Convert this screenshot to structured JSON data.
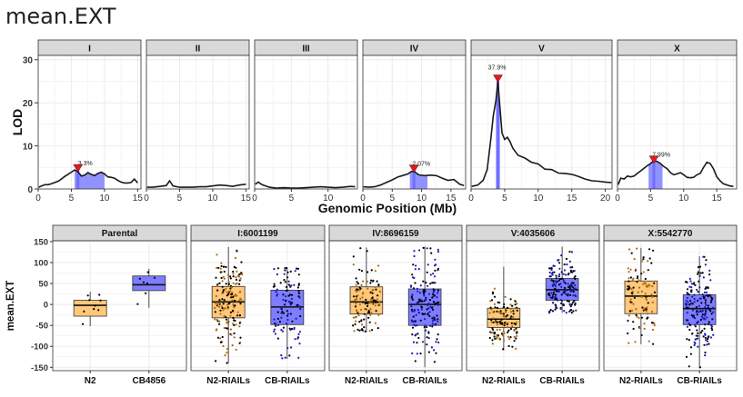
{
  "page_title": "mean.EXT",
  "chart_data": [
    {
      "type": "line",
      "ylabel": "LOD",
      "xlabel": "Genomic Position (Mb)",
      "ylim": [
        0,
        31
      ],
      "yticks": [
        0,
        10,
        20,
        30
      ],
      "grid": true,
      "legend": "none",
      "colors": {
        "line": "#1a1a1a",
        "ci": "#7f7fff",
        "ci_bar": "#6b6bff",
        "marker": "#e41a1c",
        "strip": "#d9d9d9"
      },
      "panels": [
        {
          "strip": "I",
          "xlim": [
            0,
            15.5
          ],
          "xticks": [
            0,
            5,
            10,
            15
          ],
          "profile": [
            [
              0.1,
              0.4
            ],
            [
              0.5,
              0.7
            ],
            [
              1,
              1.0
            ],
            [
              1.5,
              1.0
            ],
            [
              2,
              1.2
            ],
            [
              2.5,
              1.5
            ],
            [
              3,
              1.8
            ],
            [
              3.5,
              2.3
            ],
            [
              4,
              2.9
            ],
            [
              4.5,
              3.4
            ],
            [
              5,
              3.9
            ],
            [
              5.5,
              4.4
            ],
            [
              6,
              4.0
            ],
            [
              6.5,
              3.0
            ],
            [
              7,
              3.2
            ],
            [
              7.5,
              3.8
            ],
            [
              8,
              3.4
            ],
            [
              8.5,
              3.1
            ],
            [
              9,
              3.6
            ],
            [
              9.5,
              3.9
            ],
            [
              10,
              3.5
            ],
            [
              10.5,
              2.8
            ],
            [
              11,
              2.7
            ],
            [
              11.5,
              2.5
            ],
            [
              12,
              2.0
            ],
            [
              12.5,
              1.6
            ],
            [
              13,
              1.4
            ],
            [
              13.5,
              1.4
            ],
            [
              14,
              1.5
            ],
            [
              14.5,
              2.3
            ],
            [
              15,
              1.4
            ]
          ],
          "ci": [
            5.5,
            10
          ],
          "peak": [
            6,
            4.4
          ],
          "label": "3.3%"
        },
        {
          "strip": "II",
          "xlim": [
            0,
            15.5
          ],
          "xticks": [
            0,
            5,
            10,
            15
          ],
          "profile": [
            [
              0.1,
              0.4
            ],
            [
              1,
              0.4
            ],
            [
              2,
              0.6
            ],
            [
              3,
              0.8
            ],
            [
              3.5,
              1.9
            ],
            [
              4,
              0.7
            ],
            [
              5,
              0.4
            ],
            [
              6,
              0.4
            ],
            [
              7,
              0.4
            ],
            [
              8,
              0.5
            ],
            [
              9,
              0.5
            ],
            [
              10,
              0.7
            ],
            [
              11,
              0.9
            ],
            [
              12,
              0.8
            ],
            [
              13,
              0.6
            ],
            [
              14,
              0.9
            ],
            [
              15,
              1.1
            ]
          ]
        },
        {
          "strip": "III",
          "xlim": [
            0,
            14
          ],
          "xticks": [
            0,
            5,
            10
          ],
          "profile": [
            [
              0.1,
              1.1
            ],
            [
              0.5,
              1.6
            ],
            [
              1,
              1.0
            ],
            [
              2,
              0.4
            ],
            [
              3,
              0.2
            ],
            [
              4,
              0.3
            ],
            [
              5,
              0.2
            ],
            [
              6,
              0.2
            ],
            [
              7,
              0.3
            ],
            [
              8,
              0.4
            ],
            [
              9,
              0.5
            ],
            [
              10,
              0.4
            ],
            [
              11,
              0.3
            ],
            [
              12,
              0.4
            ],
            [
              13,
              0.6
            ],
            [
              13.7,
              0.5
            ]
          ]
        },
        {
          "strip": "IV",
          "xlim": [
            0,
            17.5
          ],
          "xticks": [
            0,
            5,
            10,
            15
          ],
          "profile": [
            [
              0.1,
              0.5
            ],
            [
              1,
              0.4
            ],
            [
              2,
              0.5
            ],
            [
              3,
              0.9
            ],
            [
              4,
              1.5
            ],
            [
              5,
              2.1
            ],
            [
              6,
              2.8
            ],
            [
              7,
              3.2
            ],
            [
              7.7,
              3.5
            ],
            [
              8.3,
              4.1
            ],
            [
              8.8,
              4.0
            ],
            [
              9.5,
              3.3
            ],
            [
              10.5,
              3.1
            ],
            [
              11.5,
              3.2
            ],
            [
              12.5,
              3.1
            ],
            [
              13.5,
              2.5
            ],
            [
              14.5,
              2.0
            ],
            [
              15.5,
              2.2
            ],
            [
              16.5,
              1.1
            ],
            [
              17.2,
              0.8
            ]
          ],
          "ci": [
            8,
            11
          ],
          "peak": [
            8.7,
            4.3
          ],
          "label": "2.07%"
        },
        {
          "strip": "V",
          "xlim": [
            0,
            21
          ],
          "xticks": [
            0,
            5,
            10,
            15,
            20
          ],
          "profile": [
            [
              0.1,
              0.6
            ],
            [
              1,
              0.9
            ],
            [
              1.8,
              2.0
            ],
            [
              2.4,
              4.5
            ],
            [
              2.9,
              11.0
            ],
            [
              3.3,
              17.0
            ],
            [
              3.7,
              20.5
            ],
            [
              4.0,
              25.0
            ],
            [
              4.3,
              19.0
            ],
            [
              4.6,
              13.0
            ],
            [
              5.0,
              11.5
            ],
            [
              5.4,
              12.0
            ],
            [
              5.8,
              11.0
            ],
            [
              6.2,
              9.5
            ],
            [
              7,
              7.8
            ],
            [
              8,
              7.2
            ],
            [
              9,
              6.2
            ],
            [
              10,
              5.8
            ],
            [
              11,
              4.6
            ],
            [
              12,
              4.5
            ],
            [
              13,
              3.7
            ],
            [
              14,
              3.6
            ],
            [
              15,
              3.4
            ],
            [
              16,
              2.9
            ],
            [
              17,
              2.3
            ],
            [
              18,
              1.9
            ],
            [
              19,
              1.8
            ],
            [
              20,
              1.6
            ],
            [
              20.9,
              1.5
            ]
          ],
          "ci": [
            3.7,
            4.3
          ],
          "peak": [
            4.0,
            25.2
          ],
          "label": "37.9%"
        },
        {
          "strip": "X",
          "xlim": [
            0,
            18
          ],
          "xticks": [
            0,
            5,
            10,
            15
          ],
          "profile": [
            [
              0.1,
              1.0
            ],
            [
              0.5,
              2.5
            ],
            [
              1,
              2.3
            ],
            [
              1.5,
              3.0
            ],
            [
              2,
              2.8
            ],
            [
              2.5,
              3.0
            ],
            [
              3,
              3.6
            ],
            [
              3.5,
              4.2
            ],
            [
              4,
              4.8
            ],
            [
              4.5,
              5.4
            ],
            [
              5,
              5.9
            ],
            [
              5.5,
              6.6
            ],
            [
              6,
              6.4
            ],
            [
              6.5,
              5.9
            ],
            [
              7,
              5.2
            ],
            [
              7.5,
              4.7
            ],
            [
              8,
              3.8
            ],
            [
              8.5,
              3.3
            ],
            [
              9,
              3.5
            ],
            [
              9.5,
              3.8
            ],
            [
              10,
              3.3
            ],
            [
              10.5,
              2.7
            ],
            [
              11,
              2.6
            ],
            [
              11.5,
              2.7
            ],
            [
              12,
              3.3
            ],
            [
              12.5,
              3.6
            ],
            [
              13,
              5.0
            ],
            [
              13.5,
              6.2
            ],
            [
              14,
              5.9
            ],
            [
              14.5,
              4.7
            ],
            [
              15,
              2.8
            ],
            [
              15.5,
              1.9
            ],
            [
              16,
              1.2
            ],
            [
              17,
              0.7
            ],
            [
              17.5,
              0.6
            ]
          ],
          "ci": [
            4.7,
            6.8
          ],
          "peak": [
            5.5,
            6.4
          ],
          "label": "7.99%"
        }
      ]
    },
    {
      "type": "box",
      "ylabel": "mean.EXT",
      "ylim": [
        -158,
        152
      ],
      "yticks": [
        150,
        100,
        50,
        0,
        -50,
        -100,
        -150
      ],
      "grid": true,
      "legend": "none",
      "colors": {
        "n2": "#ffc87a",
        "cb": "#7d7dff",
        "n2_points": "#ad6c10",
        "cb_points": "#1a1ab8",
        "strip": "#d9d9d9"
      },
      "panels": [
        {
          "strip": "Parental",
          "groups": [
            {
              "label": "N2",
              "fill": "n2",
              "q1": -28,
              "median": -2,
              "q3": 10,
              "low": -52,
              "high": 30,
              "n": 9,
              "pts": "#000000"
            },
            {
              "label": "CB4856",
              "fill": "cb",
              "q1": 33,
              "median": 47,
              "q3": 68,
              "low": -8,
              "high": 85,
              "n": 7,
              "pts": "#000000"
            }
          ]
        },
        {
          "strip": "I:6001199",
          "groups": [
            {
              "label": "N2-RIAILs",
              "fill": "n2",
              "q1": -32,
              "median": 6,
              "q3": 43,
              "low": -140,
              "high": 137,
              "n": 180,
              "pts": "#000000"
            },
            {
              "label": "CB-RIAILs",
              "fill": "cb",
              "q1": -48,
              "median": -6,
              "q3": 34,
              "low": -130,
              "high": 88,
              "n": 110,
              "pts": "#1a1ab8"
            }
          ]
        },
        {
          "strip": "IV:8696159",
          "groups": [
            {
              "label": "N2-RIAILs",
              "fill": "n2",
              "q1": -23,
              "median": 6,
              "q3": 42,
              "low": -66,
              "high": 136,
              "n": 120,
              "pts": "#ad6c10"
            },
            {
              "label": "CB-RIAILs",
              "fill": "cb",
              "q1": -50,
              "median": 0,
              "q3": 37,
              "low": -150,
              "high": 138,
              "n": 170,
              "pts": "#000000"
            }
          ]
        },
        {
          "strip": "V:4035606",
          "groups": [
            {
              "label": "N2-RIAILs",
              "fill": "n2",
              "q1": -55,
              "median": -35,
              "q3": -9,
              "low": -110,
              "high": 90,
              "n": 130,
              "pts": "#000000"
            },
            {
              "label": "CB-RIAILs",
              "fill": "cb",
              "q1": 10,
              "median": 35,
              "q3": 62,
              "low": -20,
              "high": 138,
              "n": 160,
              "pts": "#1a1ab8"
            }
          ]
        },
        {
          "strip": "X:5542770",
          "groups": [
            {
              "label": "N2-RIAILs",
              "fill": "n2",
              "q1": -22,
              "median": 20,
              "q3": 56,
              "low": -95,
              "high": 135,
              "n": 110,
              "pts": "#ad6c10"
            },
            {
              "label": "CB-RIAILs",
              "fill": "cb",
              "q1": -48,
              "median": -10,
              "q3": 23,
              "low": -152,
              "high": 115,
              "n": 180,
              "pts": "#000000"
            }
          ]
        }
      ]
    }
  ]
}
